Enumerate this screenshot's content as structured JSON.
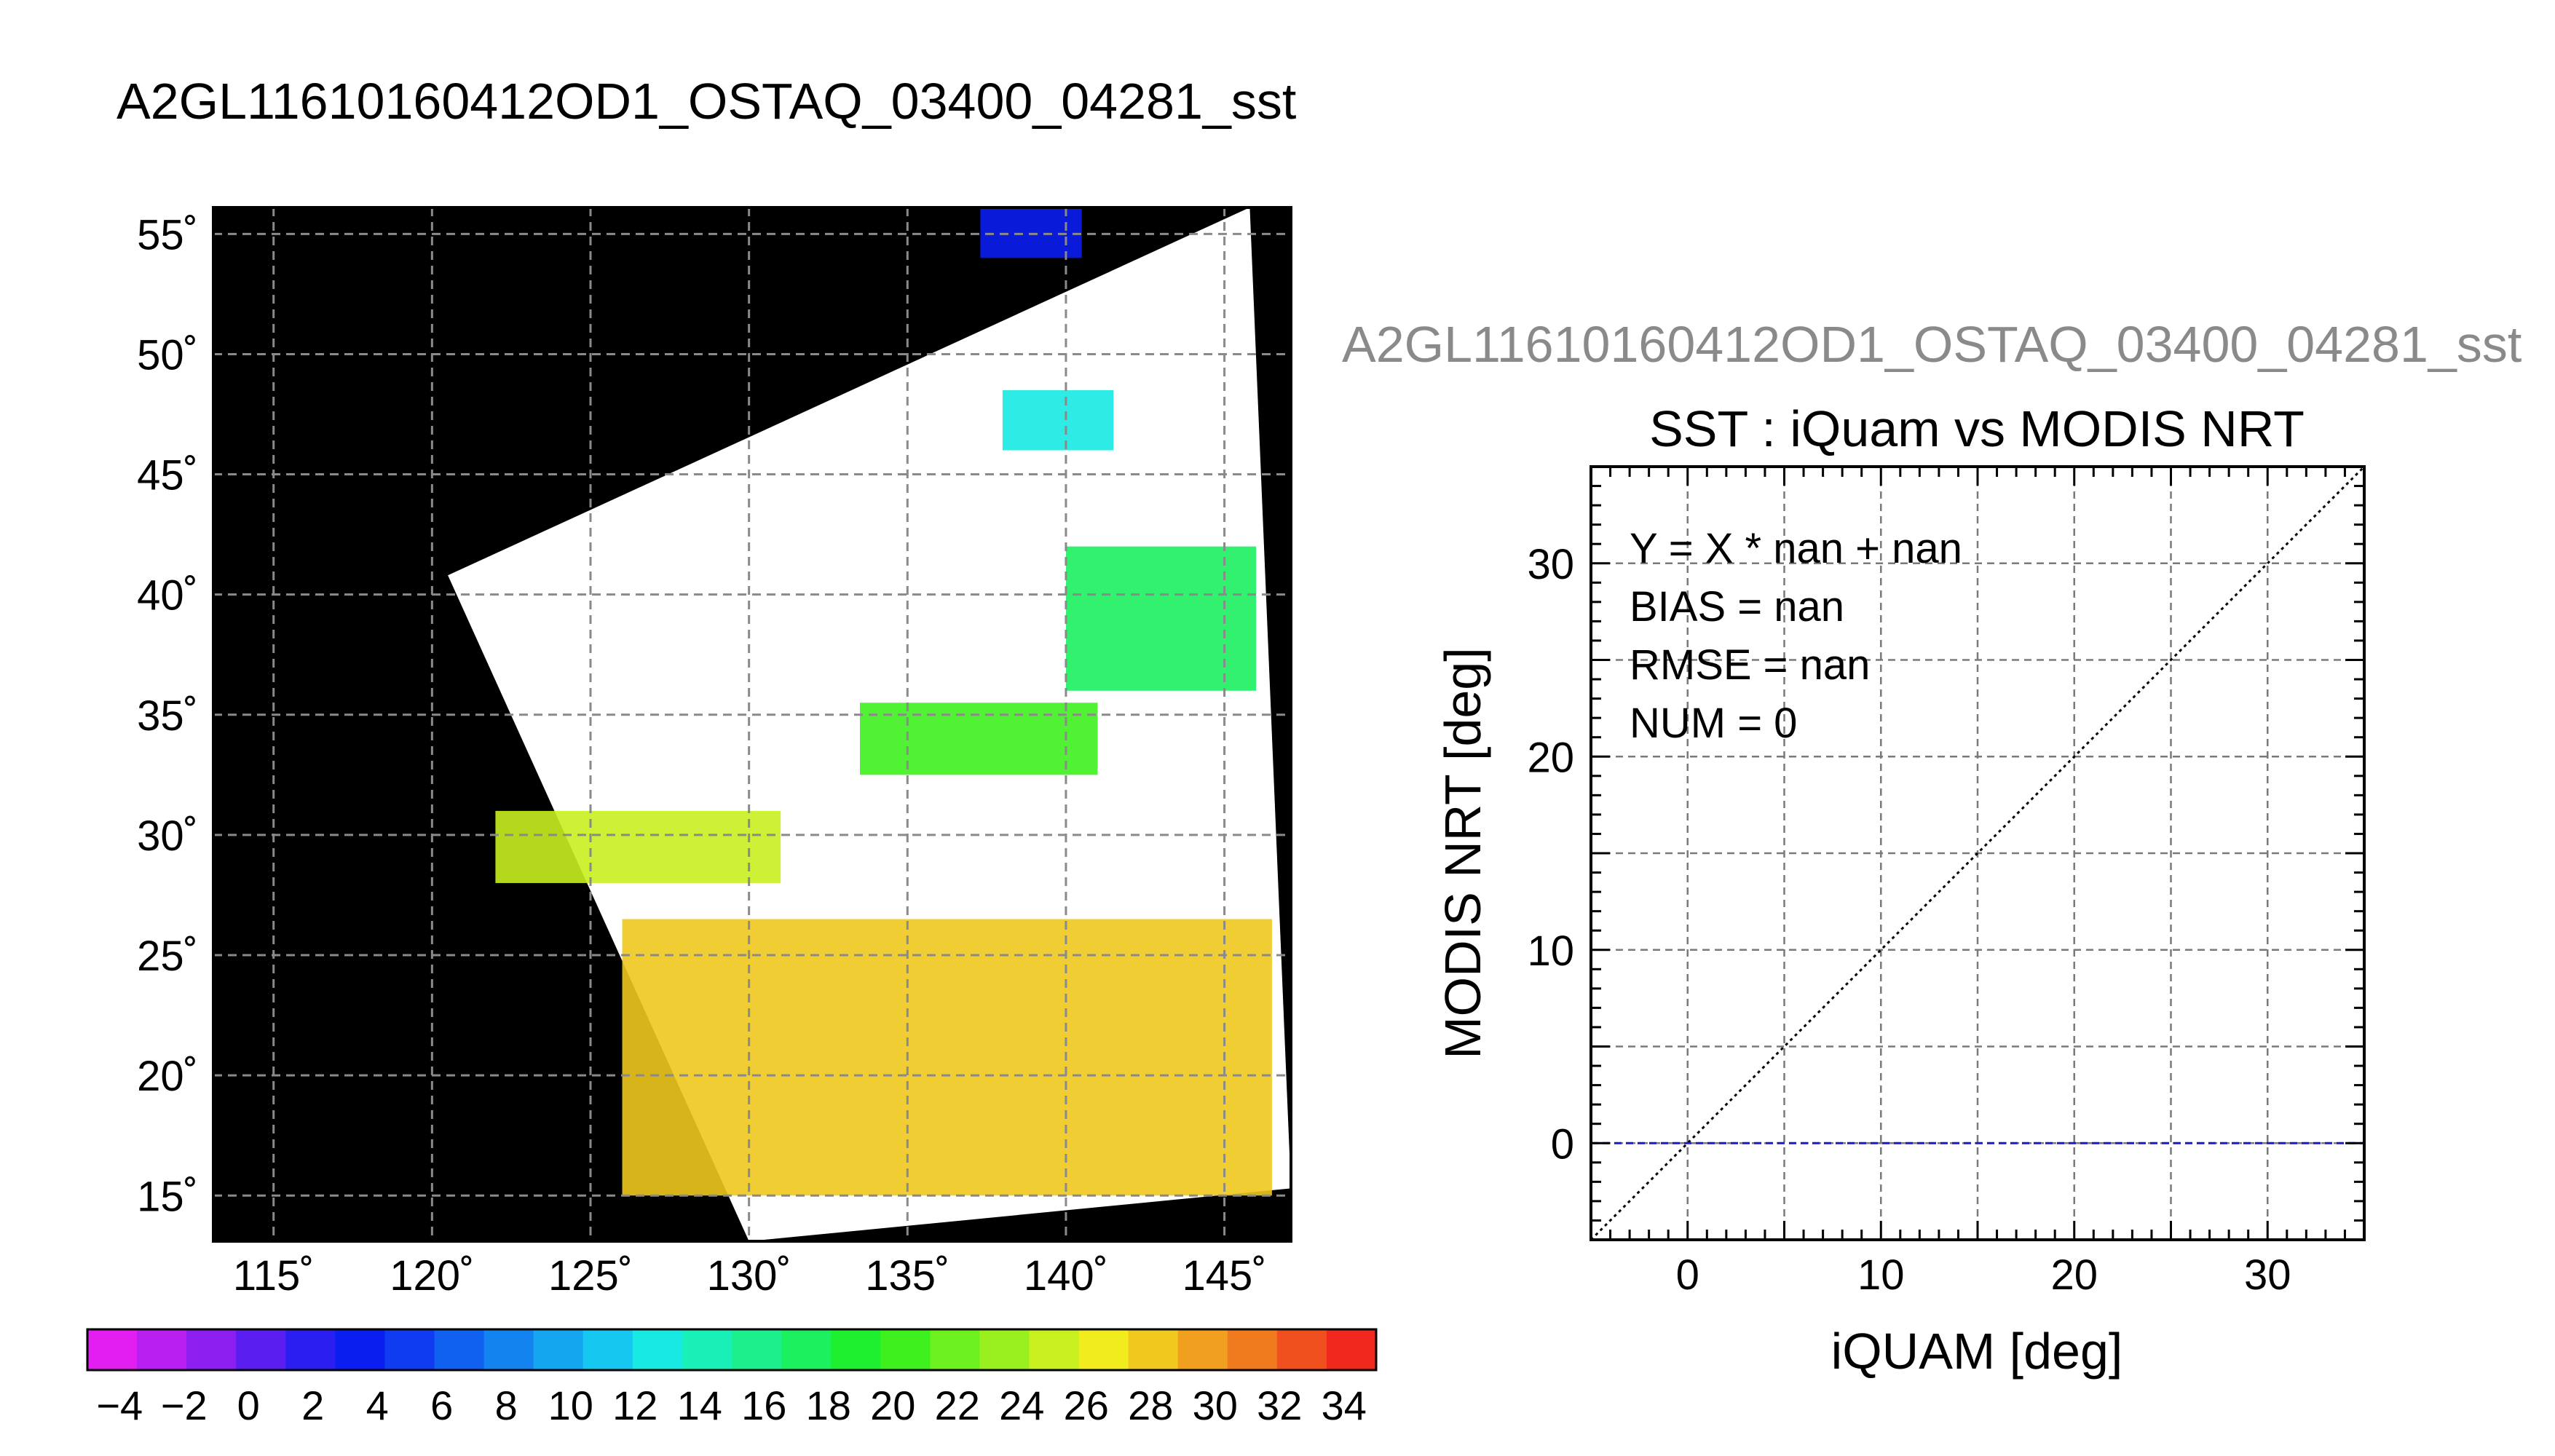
{
  "figure_title": "A2GL11610160412OD1_OSTAQ_03400_04281_sst",
  "chart_data": [
    {
      "type": "heatmap",
      "title": "",
      "xlabel": "",
      "ylabel": "",
      "x_ticks": [
        "115˚",
        "120˚",
        "125˚",
        "130˚",
        "135˚",
        "140˚",
        "145˚"
      ],
      "x_tick_values": [
        115,
        120,
        125,
        130,
        135,
        140,
        145
      ],
      "y_ticks": [
        "55˚",
        "50˚",
        "45˚",
        "40˚",
        "35˚",
        "30˚",
        "25˚",
        "20˚",
        "15˚"
      ],
      "y_tick_values": [
        55,
        50,
        45,
        40,
        35,
        30,
        25,
        20,
        15
      ],
      "xlim": [
        113.1,
        147.1
      ],
      "ylim": [
        13.1,
        56.1
      ],
      "grid": true,
      "background_color": "#000000",
      "no_data_color": "#ffffff",
      "swath_corners": [
        [
          120.5,
          40.8
        ],
        [
          145.8,
          56.1
        ],
        [
          147.1,
          15.3
        ],
        [
          130.0,
          13.1
        ]
      ],
      "colorbar": {
        "min": -5,
        "max": 35,
        "step": 2,
        "tick_labels": [
          "−4",
          "−2",
          "0",
          "2",
          "4",
          "6",
          "8",
          "10",
          "12",
          "14",
          "16",
          "18",
          "20",
          "22",
          "24",
          "26",
          "28",
          "30",
          "32",
          "34"
        ],
        "tick_values": [
          -4,
          -2,
          0,
          2,
          4,
          6,
          8,
          10,
          12,
          14,
          16,
          18,
          20,
          22,
          24,
          26,
          28,
          30,
          32,
          34
        ],
        "colors": [
          "#e21ef0",
          "#b81ff0",
          "#8c1ef0",
          "#5a1ff0",
          "#2a1ff0",
          "#0a1ef0",
          "#0f3cf0",
          "#1161f0",
          "#1383f0",
          "#15a6f0",
          "#16c8f0",
          "#18e9e2",
          "#19f0b8",
          "#1bf08c",
          "#1cf05e",
          "#1ef030",
          "#3ef01e",
          "#6cf01e",
          "#9af01e",
          "#c8f01e",
          "#f0ec1e",
          "#f0c81e",
          "#f0a01e",
          "#f07a1e",
          "#f0501e",
          "#f0281e"
        ]
      },
      "value_regions": [
        {
          "sst": 3,
          "lon": [
            137.3,
            140.5
          ],
          "lat": [
            54.0,
            56.1
          ]
        },
        {
          "sst": 12,
          "lon": [
            138.0,
            141.5
          ],
          "lat": [
            46.0,
            48.5
          ]
        },
        {
          "sst": 18,
          "lon": [
            140.0,
            146.0
          ],
          "lat": [
            36.0,
            42.0
          ]
        },
        {
          "sst": 21,
          "lon": [
            133.5,
            141.0
          ],
          "lat": [
            32.5,
            35.5
          ]
        },
        {
          "sst": 25,
          "lon": [
            122.0,
            131.0
          ],
          "lat": [
            28.0,
            31.0
          ]
        },
        {
          "sst": 28,
          "lon": [
            126.0,
            146.5
          ],
          "lat": [
            15.0,
            26.5
          ]
        }
      ]
    },
    {
      "type": "scatter",
      "header": "A2GL11610160412OD1_OSTAQ_03400_04281_sst",
      "title": "SST : iQuam vs MODIS NRT",
      "xlabel": "iQUAM [deg]",
      "ylabel": "MODIS NRT [deg]",
      "xlim": [
        -5,
        35
      ],
      "ylim": [
        -5,
        35
      ],
      "x_ticks": [
        0,
        10,
        20,
        30
      ],
      "y_ticks": [
        0,
        10,
        20,
        30
      ],
      "grid": true,
      "points": [],
      "reference_lines": [
        {
          "kind": "identity",
          "x": [
            -5,
            35
          ],
          "y": [
            -5,
            35
          ],
          "style": "dotted",
          "color": "#000000"
        },
        {
          "kind": "fit",
          "x": [
            -5,
            35
          ],
          "y": [
            0,
            0
          ],
          "style": "dashed",
          "color": "#1a1ac8"
        }
      ],
      "stats": [
        "Y = X * nan + nan",
        "BIAS = nan",
        "RMSE = nan",
        "NUM = 0"
      ]
    }
  ]
}
